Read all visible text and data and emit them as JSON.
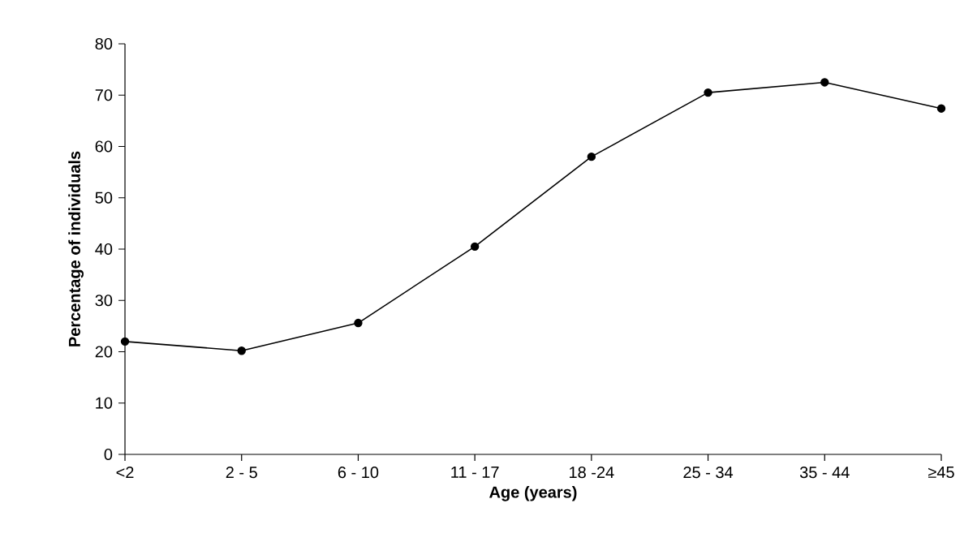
{
  "chart_data": {
    "type": "line",
    "xlabel": "Age (years)",
    "ylabel": "Percentage of individuals",
    "categories": [
      "<2",
      "2 - 5",
      "6 - 10",
      "11 - 17",
      "18 -24",
      "25 - 34",
      "35 - 44",
      "≥45"
    ],
    "ylim": [
      0,
      80
    ],
    "yticks": [
      0,
      10,
      20,
      30,
      40,
      50,
      60,
      70,
      80
    ],
    "marker": "circle",
    "series": [
      {
        "color": "#000000",
        "values": [
          22,
          20.2,
          25.6,
          40.5,
          58,
          70.5,
          72.5,
          67.4
        ]
      }
    ]
  }
}
